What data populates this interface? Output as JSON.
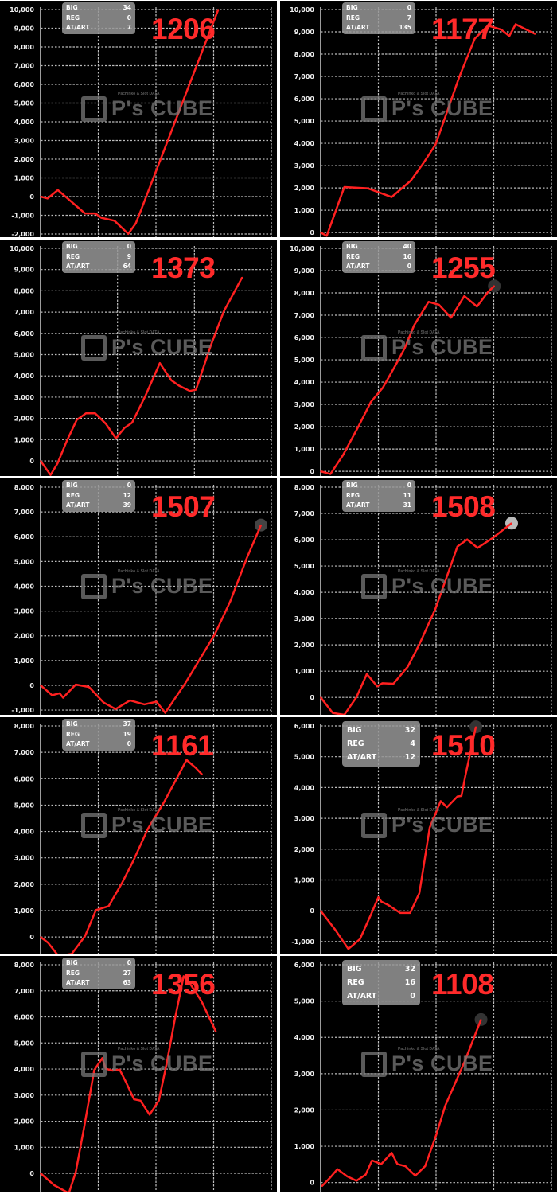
{
  "watermark": "P's CUBE",
  "colors": {
    "line": "#ff2020",
    "label": "#ff2a2a",
    "background": "#000000",
    "grid": "#bdbdbd",
    "info_box": "#969696"
  },
  "info_labels": [
    "BIG",
    "REG",
    "AT/ART"
  ],
  "chart_data": [
    {
      "type": "line",
      "label": "1206",
      "big": "34",
      "reg": "0",
      "atart": "7",
      "ylim": [
        -2170,
        10000
      ],
      "yticks": [
        -2000,
        -1000,
        0,
        1000,
        2000,
        3000,
        4000,
        5000,
        6000,
        7000,
        8000,
        9000,
        10000
      ],
      "xlim": [
        0,
        4
      ],
      "grid": true,
      "end_marker": false,
      "x": [
        0,
        0.12,
        0.3,
        0.77,
        0.95,
        1.05,
        1.28,
        1.52,
        1.65,
        1.74,
        3.08
      ],
      "y": [
        0,
        -100,
        350,
        -900,
        -900,
        -1130,
        -1290,
        -1990,
        -1430,
        -730,
        10000
      ]
    },
    {
      "type": "line",
      "label": "1177",
      "big": "0",
      "reg": "7",
      "atart": "135",
      "ylim": [
        -210,
        10000
      ],
      "yticks": [
        0,
        1000,
        2000,
        3000,
        4000,
        5000,
        6000,
        7000,
        8000,
        9000,
        10000
      ],
      "xlim": [
        0,
        4
      ],
      "grid": true,
      "end_marker": false,
      "x": [
        0,
        0.105,
        0.41,
        0.82,
        1.23,
        1.56,
        1.78,
        1.99,
        2.12,
        2.4,
        2.67,
        2.9,
        3.13,
        3.27,
        3.38,
        3.72
      ],
      "y": [
        0,
        -150,
        2040,
        1980,
        1590,
        2320,
        3110,
        3940,
        4890,
        6960,
        8690,
        9280,
        9100,
        8810,
        9340,
        8900
      ]
    },
    {
      "type": "line",
      "label": "1373",
      "big": "0",
      "reg": "9",
      "atart": "64",
      "ylim": [
        -710,
        10000
      ],
      "yticks": [
        0,
        1000,
        2000,
        3000,
        4000,
        5000,
        6000,
        7000,
        8000,
        9000,
        10000
      ],
      "xlim": [
        0,
        3
      ],
      "grid": true,
      "end_marker": false,
      "x": [
        0,
        0.13,
        0.22,
        0.34,
        0.47,
        0.59,
        0.71,
        0.85,
        0.98,
        1.09,
        1.19,
        1.36,
        1.55,
        1.7,
        1.8,
        1.94,
        2.02,
        2.21,
        2.38,
        2.62
      ],
      "y": [
        0,
        -660,
        -120,
        930,
        1930,
        2240,
        2240,
        1740,
        1060,
        1550,
        1800,
        3040,
        4600,
        3790,
        3540,
        3290,
        3350,
        5400,
        7020,
        8630
      ]
    },
    {
      "type": "line",
      "label": "1255",
      "big": "40",
      "reg": "16",
      "atart": "0",
      "ylim": [
        -210,
        10000
      ],
      "yticks": [
        0,
        1000,
        2000,
        3000,
        4000,
        5000,
        6000,
        7000,
        8000,
        9000,
        10000
      ],
      "xlim": [
        0,
        4
      ],
      "grid": true,
      "end_marker": true,
      "marker_color": "#333333",
      "x": [
        0,
        0.17,
        0.39,
        0.66,
        0.87,
        1.08,
        1.3,
        1.46,
        1.62,
        1.87,
        2.05,
        2.26,
        2.49,
        2.71,
        2.9,
        3.01
      ],
      "y": [
        0,
        -120,
        740,
        2040,
        3110,
        3760,
        4770,
        5540,
        6550,
        7600,
        7470,
        6890,
        7860,
        7390,
        8040,
        8310
      ]
    },
    {
      "type": "line",
      "label": "1507",
      "big": "0",
      "reg": "12",
      "atart": "39",
      "ylim": [
        -1190,
        8000
      ],
      "yticks": [
        -1000,
        0,
        1000,
        2000,
        3000,
        4000,
        5000,
        6000,
        7000,
        8000
      ],
      "xlim": [
        0,
        4
      ],
      "grid": true,
      "end_marker": true,
      "marker_color": "#444444",
      "x": [
        0,
        0.2,
        0.33,
        0.39,
        0.61,
        0.84,
        1.09,
        1.3,
        1.55,
        1.8,
        2.01,
        2.16,
        2.51,
        3.02,
        3.29,
        3.57,
        3.82
      ],
      "y": [
        0,
        -400,
        -320,
        -500,
        30,
        -70,
        -690,
        -960,
        -610,
        -770,
        -660,
        -1110,
        90,
        2060,
        3400,
        5110,
        6470
      ]
    },
    {
      "type": "line",
      "label": "1508",
      "big": "0",
      "reg": "11",
      "atart": "31",
      "ylim": [
        -660,
        8000
      ],
      "yticks": [
        0,
        1000,
        2000,
        3000,
        4000,
        5000,
        6000,
        7000,
        8000
      ],
      "xlim": [
        0,
        4
      ],
      "grid": true,
      "end_marker": true,
      "marker_color": "#bbbbbb",
      "x": [
        0,
        0.21,
        0.41,
        0.62,
        0.8,
        0.98,
        1.07,
        1.26,
        1.51,
        1.71,
        1.99,
        2.17,
        2.37,
        2.54,
        2.72,
        2.99,
        3.31
      ],
      "y": [
        0,
        -590,
        -660,
        10,
        890,
        420,
        540,
        520,
        1170,
        2020,
        3380,
        4490,
        5740,
        6010,
        5690,
        6080,
        6630
      ]
    },
    {
      "type": "line",
      "label": "1161",
      "big": "37",
      "reg": "19",
      "atart": "0",
      "ylim": [
        -630,
        8000
      ],
      "yticks": [
        0,
        1000,
        2000,
        3000,
        4000,
        5000,
        6000,
        7000,
        8000
      ],
      "xlim": [
        0,
        4
      ],
      "grid": true,
      "end_marker": false,
      "x": [
        0,
        0.13,
        0.31,
        0.54,
        0.77,
        0.96,
        1.18,
        1.41,
        1.61,
        1.86,
        2.14,
        2.53,
        2.69,
        2.8
      ],
      "y": [
        0,
        -220,
        -720,
        -640,
        30,
        1020,
        1170,
        2040,
        2900,
        4100,
        5110,
        6710,
        6410,
        6160
      ]
    },
    {
      "type": "line",
      "label": "1510",
      "big": "32",
      "reg": "4",
      "atart": "12",
      "ylim": [
        -1390,
        6000
      ],
      "yticks": [
        -1000,
        0,
        1000,
        2000,
        3000,
        4000,
        5000,
        6000
      ],
      "xlim": [
        0,
        4
      ],
      "grid": true,
      "end_marker": true,
      "marker_color": "#333333",
      "x": [
        0,
        0.25,
        0.48,
        0.68,
        0.87,
        1.0,
        1.05,
        1.16,
        1.38,
        1.55,
        1.71,
        1.78,
        1.89,
        2.08,
        2.19,
        2.37,
        2.44,
        2.51,
        2.69
      ],
      "y": [
        0,
        -610,
        -1240,
        -920,
        -130,
        440,
        300,
        200,
        -70,
        -70,
        570,
        1390,
        2700,
        3560,
        3360,
        3710,
        3730,
        4400,
        5970
      ]
    },
    {
      "type": "line",
      "label": "1356",
      "big": "0",
      "reg": "27",
      "atart": "63",
      "ylim": [
        -730,
        8000
      ],
      "yticks": [
        0,
        1000,
        2000,
        3000,
        4000,
        5000,
        6000,
        7000,
        8000
      ],
      "xlim": [
        0,
        4
      ],
      "grid": true,
      "end_marker": false,
      "x": [
        0,
        0.24,
        0.49,
        0.61,
        0.76,
        0.93,
        1.07,
        1.13,
        1.25,
        1.37,
        1.48,
        1.62,
        1.73,
        1.89,
        2.05,
        2.19,
        2.33,
        2.48,
        2.61,
        2.79,
        3.04
      ],
      "y": [
        0,
        -460,
        -760,
        50,
        1830,
        3960,
        4420,
        4010,
        3940,
        3980,
        3500,
        2840,
        2790,
        2250,
        2790,
        4260,
        5940,
        7560,
        7210,
        6600,
        5430
      ]
    },
    {
      "type": "line",
      "label": "1108",
      "big": "32",
      "reg": "16",
      "atart": "0",
      "ylim": [
        -270,
        6000
      ],
      "yticks": [
        0,
        1000,
        2000,
        3000,
        4000,
        5000,
        6000
      ],
      "xlim": [
        0,
        4
      ],
      "grid": true,
      "end_marker": true,
      "marker_color": "#333333",
      "x": [
        0.02,
        0.16,
        0.29,
        0.46,
        0.62,
        0.78,
        0.89,
        1.05,
        1.23,
        1.33,
        1.47,
        1.64,
        1.81,
        2.0,
        2.16,
        2.5,
        2.78
      ],
      "y": [
        -100,
        130,
        370,
        170,
        50,
        220,
        610,
        510,
        820,
        510,
        450,
        190,
        450,
        1300,
        2120,
        3350,
        4490
      ]
    }
  ]
}
